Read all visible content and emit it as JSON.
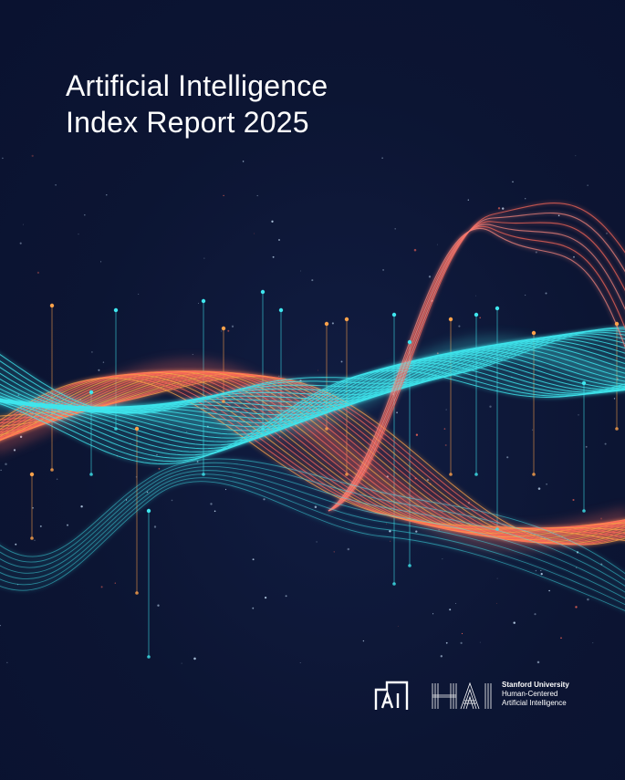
{
  "title": {
    "line1": "Artificial Intelligence",
    "line2": "Index Report 2025"
  },
  "logos": {
    "ai_mark": "AI",
    "hai_mark": "HAI",
    "university": "Stanford University",
    "line2": "Human-Centered",
    "line3": "Artificial Intelligence"
  },
  "colors": {
    "background": "#0c1533",
    "cyan": "#3fe6ee",
    "coral": "#ff6a5a",
    "orange": "#ffa24a",
    "pink": "#ff8a80",
    "white": "#ffffff"
  }
}
